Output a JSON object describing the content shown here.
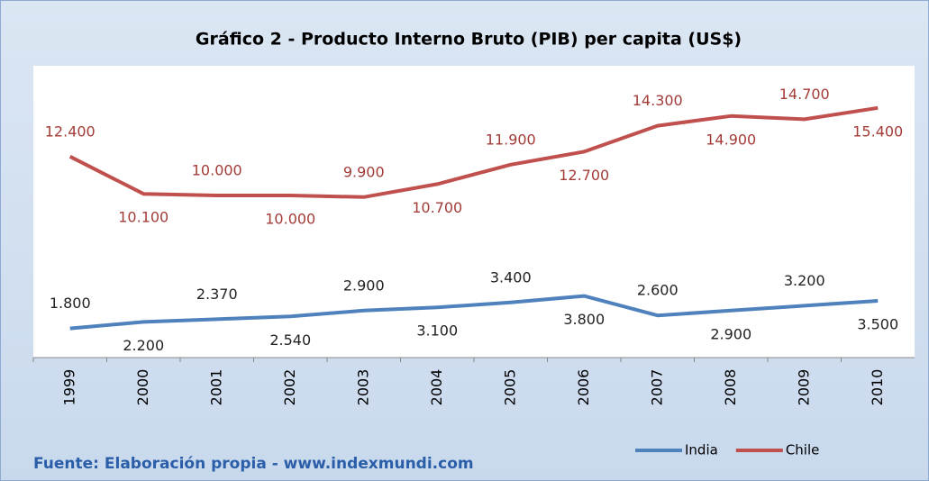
{
  "chart_data": {
    "type": "line",
    "title": "Gráfico 2 - Producto Interno Bruto (PIB) per capita (US$)",
    "source": "Fuente: Elaboración propia - www.indexmundi.com",
    "categories": [
      "1999",
      "2000",
      "2001",
      "2002",
      "2003",
      "2004",
      "2005",
      "2006",
      "2007",
      "2008",
      "2009",
      "2010"
    ],
    "series": [
      {
        "name": "India",
        "color": "#4f81bd",
        "values": [
          1800,
          2200,
          2370,
          2540,
          2900,
          3100,
          3400,
          3800,
          2600,
          2900,
          3200,
          3500
        ],
        "value_labels": [
          "1.800",
          "2.200",
          "2.370",
          "2.540",
          "2.900",
          "3.100",
          "3.400",
          "3.800",
          "2.600",
          "2.900",
          "3.200",
          "3.500"
        ]
      },
      {
        "name": "Chile",
        "color": "#c0504d",
        "values": [
          12400,
          10100,
          10000,
          10000,
          9900,
          10700,
          11900,
          12700,
          14300,
          14900,
          14700,
          15400
        ],
        "value_labels": [
          "12.400",
          "10.100",
          "10.000",
          "10.000",
          "9.900",
          "10.700",
          "11.900",
          "12.700",
          "14.300",
          "14.900",
          "14.700",
          "15.400"
        ]
      }
    ],
    "ylim": [
      0,
      18000
    ],
    "legend": "bottom-right"
  }
}
